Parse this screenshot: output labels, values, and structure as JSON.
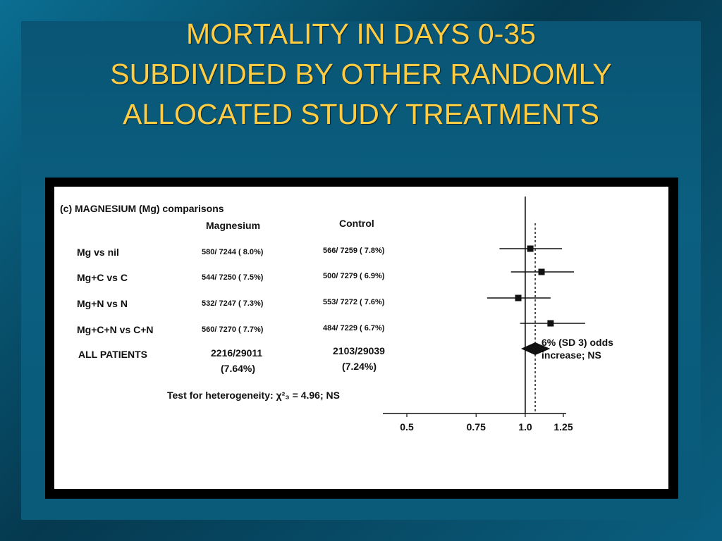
{
  "title_lines": [
    "MORTALITY IN DAYS 0-35",
    "SUBDIVIDED BY OTHER RANDOMLY",
    "ALLOCATED STUDY TREATMENTS"
  ],
  "colors": {
    "title": "#ffcc44",
    "background": "#0a5a7a",
    "figure_bg": "#ffffff",
    "ink": "#111111"
  },
  "figure": {
    "panel_heading": "(c) MAGNESIUM (Mg) comparisons",
    "col_magnesium": "Magnesium",
    "col_control": "Control",
    "rows": [
      {
        "label": "Mg vs nil",
        "magnesium": "580/ 7244 ( 8.0%)",
        "control": "566/ 7259 ( 7.8%)"
      },
      {
        "label": "Mg+C vs C",
        "magnesium": "544/ 7250 ( 7.5%)",
        "control": "500/ 7279 ( 6.9%)"
      },
      {
        "label": "Mg+N vs N",
        "magnesium": "532/ 7247 ( 7.3%)",
        "control": "553/ 7272 ( 7.6%)"
      },
      {
        "label": "Mg+C+N vs C+N",
        "magnesium": "560/ 7270 ( 7.7%)",
        "control": "484/ 7229 ( 6.7%)"
      }
    ],
    "all_patients": {
      "label": "ALL PATIENTS",
      "magnesium_count": "2216/29011",
      "magnesium_pct": "(7.64%)",
      "control_count": "2103/29039",
      "control_pct": "(7.24%)"
    },
    "heterogeneity": "Test for heterogeneity: χ²₃ = 4.96; NS",
    "summary_annotation": [
      "6% (SD 3) odds",
      "increase; NS"
    ]
  },
  "chart_data": {
    "type": "scatter",
    "subtype": "forest-plot",
    "xscale": "log",
    "xlim": [
      0.5,
      1.5
    ],
    "xticks": [
      0.5,
      0.75,
      1.0,
      1.25
    ],
    "xtick_labels": [
      "0.5",
      "0.75",
      "1.0",
      "1.25"
    ],
    "reference_line": 1.0,
    "overall_line": 1.06,
    "series": [
      {
        "label": "Mg vs nil",
        "or": 1.03,
        "ci": [
          0.86,
          1.24
        ]
      },
      {
        "label": "Mg+C vs C",
        "or": 1.1,
        "ci": [
          0.92,
          1.33
        ]
      },
      {
        "label": "Mg+N vs N",
        "or": 0.96,
        "ci": [
          0.8,
          1.16
        ]
      },
      {
        "label": "Mg+C+N vs C+N",
        "or": 1.16,
        "ci": [
          0.97,
          1.42
        ]
      }
    ],
    "overall": {
      "label": "ALL PATIENTS",
      "or": 1.06,
      "ci": [
        1.0,
        1.12
      ]
    }
  }
}
